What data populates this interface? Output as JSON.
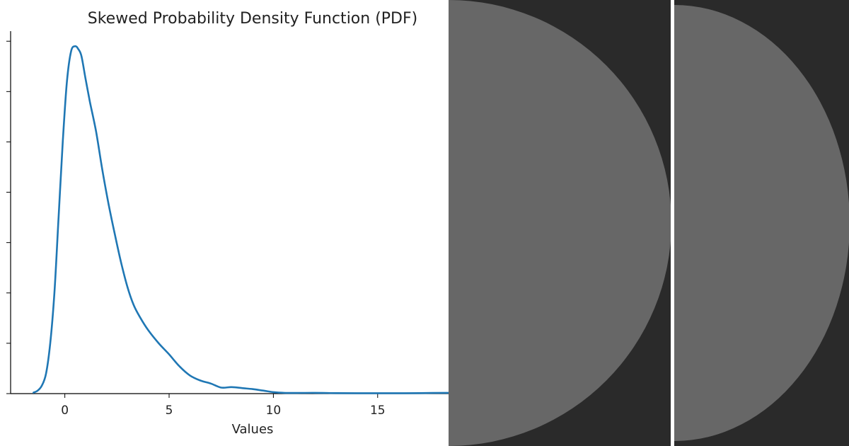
{
  "chart_data": {
    "type": "line",
    "title": "Skewed Probability Density Function (PDF)",
    "xlabel": "Values",
    "ylabel": "",
    "xlim": [
      -2.6,
      18.4
    ],
    "ylim": [
      0,
      0.36
    ],
    "xticks": [
      0,
      5,
      10,
      15
    ],
    "xtick_labels": [
      "0",
      "5",
      "10",
      "15"
    ],
    "yticks": [
      0,
      0.05,
      0.1,
      0.15,
      0.2,
      0.25,
      0.3,
      0.35
    ],
    "ytick_labels_visible": false,
    "spines": "left-bottom",
    "grid": false,
    "series": [
      {
        "color": "#1f77b4",
        "x": [
          -1.5,
          -1.3,
          -1.1,
          -0.9,
          -0.7,
          -0.5,
          -0.3,
          -0.1,
          0.1,
          0.3,
          0.5,
          0.65,
          0.8,
          1.0,
          1.2,
          1.5,
          1.8,
          2.1,
          2.4,
          2.7,
          3.0,
          3.3,
          3.6,
          4.0,
          4.5,
          5.0,
          5.5,
          6.0,
          6.5,
          7.0,
          7.5,
          8.0,
          8.5,
          9.0,
          9.5,
          10.0,
          10.5,
          11.0,
          12.0,
          13.0,
          14.0,
          15.0,
          16.0,
          17.0,
          18.4
        ],
        "y": [
          0.001,
          0.003,
          0.008,
          0.02,
          0.05,
          0.1,
          0.175,
          0.25,
          0.31,
          0.34,
          0.345,
          0.342,
          0.335,
          0.312,
          0.29,
          0.26,
          0.222,
          0.188,
          0.158,
          0.13,
          0.106,
          0.088,
          0.076,
          0.063,
          0.05,
          0.039,
          0.027,
          0.018,
          0.013,
          0.01,
          0.006,
          0.0065,
          0.0055,
          0.0045,
          0.003,
          0.0015,
          0.0008,
          0.0006,
          0.0008,
          0.0005,
          0.0004,
          0.0004,
          0.0004,
          0.0005,
          0.0008
        ]
      }
    ]
  },
  "right_panels": {
    "background_color": "#2a2a2a",
    "disc_color": "#676767",
    "divider_color": "#ffffff"
  }
}
